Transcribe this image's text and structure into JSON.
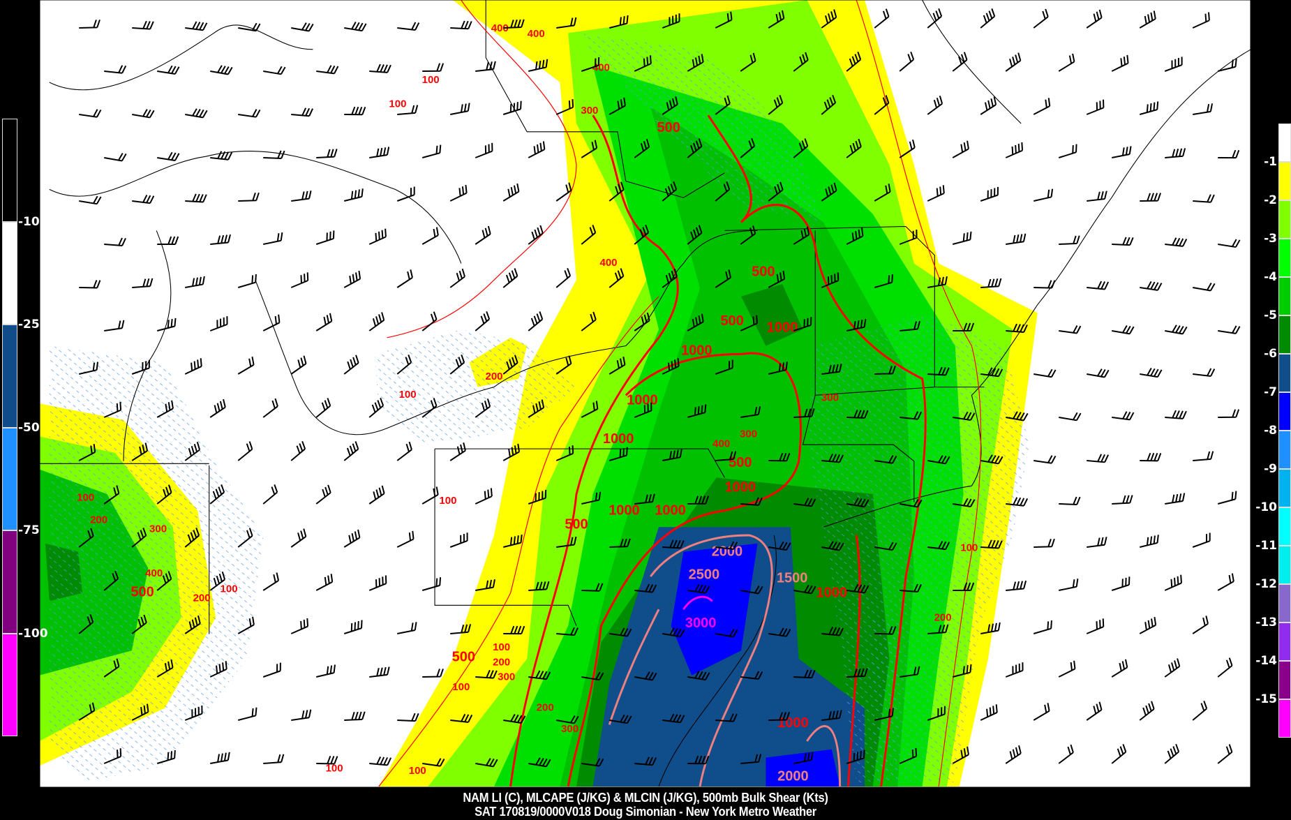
{
  "title": {
    "line1": "NAM LI (C), MLCAPE (J/KG) & MLCIN (J/KG), 500mb Bulk Shear (Kts)",
    "line2": "SAT 170819/0000V018 Doug Simonian - New York Metro Weather"
  },
  "left_colorbar": {
    "field": "MLCIN (J/KG)",
    "labels": [
      "-10",
      "-25",
      "-50",
      "-75",
      "-100"
    ],
    "colors": [
      "#000000",
      "#ffffff",
      "#104b8a",
      "#1e90ff",
      "#800080",
      "#ff00ff"
    ]
  },
  "right_colorbar": {
    "field": "LI (C)",
    "labels": [
      "-1",
      "-2",
      "-3",
      "-4",
      "-5",
      "-6",
      "-7",
      "-8",
      "-9",
      "-10",
      "-11",
      "-12",
      "-13",
      "-14",
      "-15"
    ],
    "colors": [
      "#ffffff",
      "#ffff00",
      "#7fff00",
      "#00ff00",
      "#00cd00",
      "#008b00",
      "#104e8b",
      "#0000ff",
      "#1e90ff",
      "#00b2ee",
      "#00ffff",
      "#00eeee",
      "#8968cd",
      "#912cee",
      "#8b008b",
      "#ff00ff"
    ]
  },
  "cape_labels": [
    "400",
    "400",
    "100",
    "100",
    "400",
    "300",
    "500",
    "400",
    "500",
    "500",
    "1000",
    "1000",
    "200",
    "100",
    "1000",
    "300",
    "1000",
    "300",
    "400",
    "500",
    "1000",
    "100",
    "1000",
    "1000",
    "500",
    "2000",
    "2500",
    "1500",
    "1000",
    "3000",
    "100",
    "200",
    "100",
    "200",
    "300",
    "400",
    "500",
    "200",
    "100",
    "500",
    "100",
    "200",
    "300",
    "100",
    "300",
    "200",
    "100",
    "100",
    "1000",
    "2000"
  ],
  "colors": {
    "cape_contour": "#ff0000",
    "cape_high_contour": "#f08080",
    "cape_extreme_contour": "#ff00ff",
    "cin_hatch": "#4a90e2",
    "map_lines": "#000000",
    "wind_barbs": "#000000"
  }
}
